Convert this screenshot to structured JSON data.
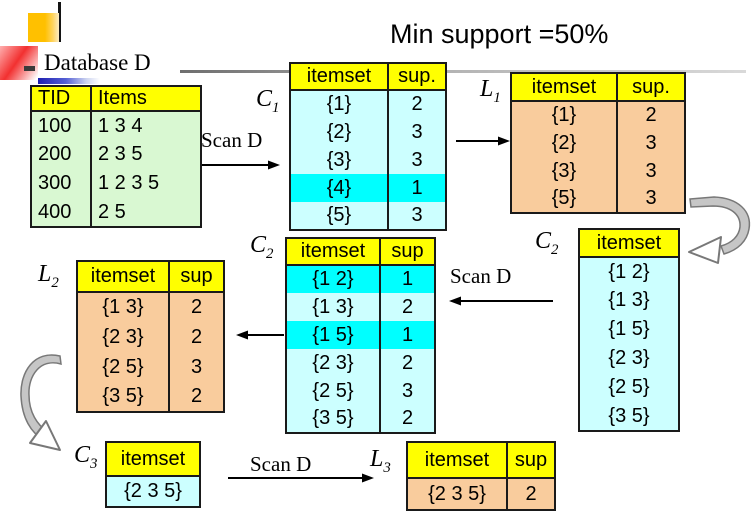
{
  "header": {
    "min_support": "Min support =50%",
    "database_label": "Database D"
  },
  "labels": {
    "c1": {
      "text": "C",
      "sub": "1"
    },
    "l1": {
      "text": "L",
      "sub": "1"
    },
    "c2_mid": {
      "text": "C",
      "sub": "2"
    },
    "c2_right": {
      "text": "C",
      "sub": "2"
    },
    "l2": {
      "text": "L",
      "sub": "2"
    },
    "c3": {
      "text": "C",
      "sub": "3"
    },
    "l3": {
      "text": "L",
      "sub": "3"
    }
  },
  "scans": {
    "scan1": "Scan D",
    "scan2": "Scan D",
    "scan3": "Scan D"
  },
  "tables": {
    "database": {
      "headers": [
        "TID",
        "Items"
      ],
      "rows": [
        [
          "100",
          "1 3 4"
        ],
        [
          "200",
          "2 3 5"
        ],
        [
          "300",
          "1 2 3 5"
        ],
        [
          "400",
          "2 5"
        ]
      ]
    },
    "c1": {
      "headers": [
        "itemset",
        "sup."
      ],
      "rows": [
        [
          "{1}",
          "2"
        ],
        [
          "{2}",
          "3"
        ],
        [
          "{3}",
          "3"
        ],
        [
          "{4}",
          "1"
        ],
        [
          "{5}",
          "3"
        ]
      ],
      "highlighted_rows": [
        3
      ]
    },
    "l1": {
      "headers": [
        "itemset",
        "sup."
      ],
      "rows": [
        [
          "{1}",
          "2"
        ],
        [
          "{2}",
          "3"
        ],
        [
          "{3}",
          "3"
        ],
        [
          "{5}",
          "3"
        ]
      ]
    },
    "c2_candidates": {
      "headers": [
        "itemset"
      ],
      "rows": [
        [
          "{1 2}"
        ],
        [
          "{1 3}"
        ],
        [
          "{1 5}"
        ],
        [
          "{2 3}"
        ],
        [
          "{2 5}"
        ],
        [
          "{3 5}"
        ]
      ]
    },
    "c2_counted": {
      "headers": [
        "itemset",
        "sup"
      ],
      "rows": [
        [
          "{1 2}",
          "1"
        ],
        [
          "{1 3}",
          "2"
        ],
        [
          "{1 5}",
          "1"
        ],
        [
          "{2 3}",
          "2"
        ],
        [
          "{2 5}",
          "3"
        ],
        [
          "{3 5}",
          "2"
        ]
      ],
      "highlighted_rows": [
        0,
        2
      ]
    },
    "l2": {
      "headers": [
        "itemset",
        "sup"
      ],
      "rows": [
        [
          "{1 3}",
          "2"
        ],
        [
          "{2 3}",
          "2"
        ],
        [
          "{2 5}",
          "3"
        ],
        [
          "{3 5}",
          "2"
        ]
      ]
    },
    "c3": {
      "headers": [
        "itemset"
      ],
      "rows": [
        [
          "{2 3 5}"
        ]
      ]
    },
    "l3": {
      "headers": [
        "itemset",
        "sup"
      ],
      "rows": [
        [
          "{2 3 5}",
          "2"
        ]
      ]
    }
  },
  "colors": {
    "header_bg": "#ffff00",
    "candidate_bg": "#ccffff",
    "highlight_bg": "#00ffff",
    "frequent_bg": "#f9cc9d",
    "database_bg": "#d9f8d2"
  }
}
